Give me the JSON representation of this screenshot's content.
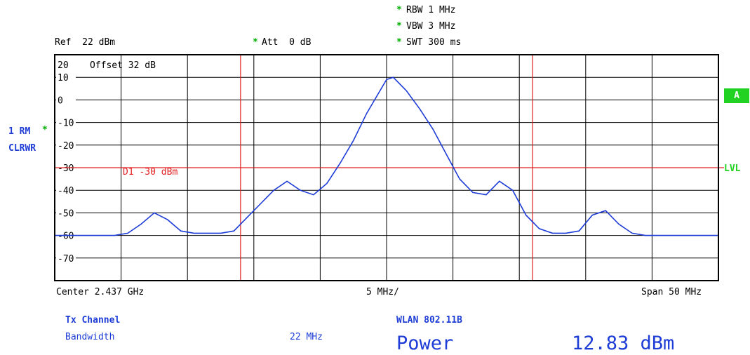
{
  "settings": {
    "ref": "Ref  22 dBm",
    "att_star": "*",
    "att": "Att  0 dB",
    "rbw_star": "*",
    "rbw": "RBW 1 MHz",
    "vbw_star": "*",
    "vbw": "VBW 3 MHz",
    "swt_star": "*",
    "swt": "SWT 300 ms",
    "offset": "Offset  32 dB"
  },
  "trace": {
    "label": "1 RM",
    "star": "*",
    "mode": "CLRWR"
  },
  "side": {
    "badge": "A",
    "lvl": "LVL"
  },
  "colors": {
    "trace": "#1e3cd6",
    "marker": "#e02020",
    "grid": "#000000",
    "badge": "#22d222"
  },
  "chart_data": {
    "type": "line",
    "title": "",
    "xlabel": "",
    "ylabel": "",
    "center_label": "Center 2.437 GHz",
    "per_div_label": "5 MHz/",
    "span_label": "Span 50 MHz",
    "xlim": [
      2.412,
      2.462
    ],
    "ylim": [
      -80,
      20
    ],
    "y_ticks": [
      "20",
      "10",
      "0",
      "-10",
      "-20",
      "-30",
      "-40",
      "-50",
      "-60",
      "-70"
    ],
    "display_line": {
      "label": "D1  -30 dBm",
      "value": -30
    },
    "channel_lines_mhz": [
      2.426,
      2.448
    ],
    "series": [
      {
        "x": [
          2.412,
          2.4145,
          2.4165,
          2.4175,
          2.4185,
          2.4195,
          2.4205,
          2.4215,
          2.4225,
          2.4235,
          2.4245,
          2.4255,
          2.4265,
          2.4275,
          2.4285,
          2.4295,
          2.4305,
          2.4315,
          2.4325,
          2.4335,
          2.4345,
          2.4355,
          2.4365,
          2.437,
          2.4375,
          2.4385,
          2.4395,
          2.4405,
          2.4415,
          2.4425,
          2.4435,
          2.4445,
          2.4455,
          2.4465,
          2.4475,
          2.4485,
          2.4495,
          2.4505,
          2.4515,
          2.4525,
          2.4535,
          2.4545,
          2.4555,
          2.4565,
          2.4575,
          2.46,
          2.462
        ],
        "y": [
          -60,
          -60,
          -60,
          -59,
          -55,
          -50,
          -53,
          -58,
          -59,
          -59,
          -59,
          -58,
          -52,
          -46,
          -40,
          -36,
          -40,
          -42,
          -37,
          -28,
          -18,
          -6,
          4,
          9,
          10,
          4,
          -4,
          -13,
          -24,
          -35,
          -41,
          -42,
          -36,
          -40,
          -51,
          -57,
          -59,
          -59,
          -58,
          -51,
          -49,
          -55,
          -59,
          -60,
          -60,
          -60,
          -60
        ]
      }
    ]
  },
  "footer": {
    "tx_title": "Tx Channel",
    "wlan": "WLAN 802.11B",
    "bandwidth_label": "Bandwidth",
    "bandwidth_value": "22 MHz",
    "power_label": "Power",
    "power_value": "12.83 dBm"
  }
}
